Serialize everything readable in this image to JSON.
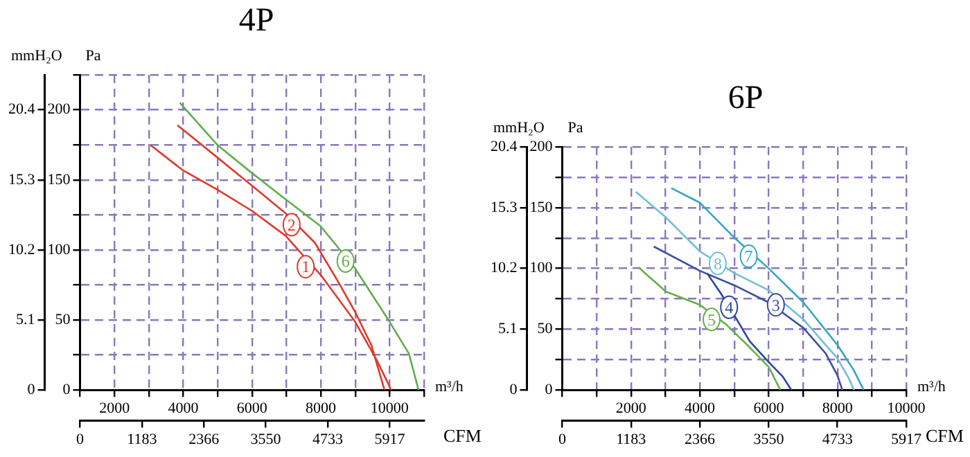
{
  "chart_data": [
    {
      "type": "line",
      "title": "4P",
      "xlabel": "m³/h",
      "x2label": "CFM",
      "ylabel": "Pa",
      "y2label": "mmH₂O",
      "grid": true,
      "xlim": [
        1000,
        11000
      ],
      "xticks": [
        {
          "value": 1000,
          "label": null
        },
        2000,
        {
          "value": 3000,
          "label": null
        },
        4000,
        {
          "value": 5000,
          "label": null
        },
        6000,
        {
          "value": 7000,
          "label": null
        },
        8000,
        {
          "value": 9000,
          "label": null
        },
        10000,
        {
          "value": 11000,
          "label": null
        }
      ],
      "x2lim": [
        0,
        6574
      ],
      "x2ticks": [
        0,
        1183,
        2366,
        3550,
        4733,
        5917
      ],
      "ylim": [
        0,
        225
      ],
      "yticks": [
        0,
        {
          "value": 25,
          "label": null
        },
        50,
        {
          "value": 75,
          "label": null
        },
        100,
        {
          "value": 125,
          "label": null
        },
        150,
        {
          "value": 175,
          "label": null
        },
        200,
        {
          "value": 225,
          "label": null
        }
      ],
      "y2lim": [
        0,
        22.95
      ],
      "y2ticks": [
        0,
        5.1,
        10.2,
        15.3,
        20.4
      ],
      "series": [
        {
          "color": "#e0392b",
          "x": [
            3040,
            3980,
            4990,
            5990,
            6980,
            7560,
            8000,
            8990,
            9610,
            9950,
            10040
          ],
          "values": [
            175,
            157,
            143,
            128,
            110,
            94,
            82,
            49,
            22,
            5,
            0
          ]
        },
        {
          "color": "#e0392b",
          "x": [
            3830,
            4990,
            5990,
            6980,
            7830,
            8510,
            8990,
            9470,
            9850
          ],
          "values": [
            189,
            166,
            146,
            126,
            105,
            77,
            56,
            32,
            0
          ]
        },
        {
          "color": "#5fae4c",
          "x": [
            3900,
            4990,
            5990,
            6980,
            7990,
            8990,
            9990,
            10560,
            10840
          ],
          "values": [
            205,
            175,
            155,
            136,
            117,
            87,
            49,
            26,
            0
          ]
        }
      ],
      "annotations": [
        {
          "text": "1",
          "x": 7560,
          "y": 88
        },
        {
          "text": "2",
          "x": 7150,
          "y": 118
        },
        {
          "text": "6",
          "x": 8720,
          "y": 92
        }
      ]
    },
    {
      "type": "line",
      "title": "6P",
      "xlabel": "m³/h",
      "x2label": "CFM",
      "ylabel": "Pa",
      "y2label": "mmH₂O",
      "grid": true,
      "xlim": [
        0,
        10000
      ],
      "xticks": [
        {
          "value": 0,
          "label": null
        },
        {
          "value": 1000,
          "label": null
        },
        2000,
        {
          "value": 3000,
          "label": null
        },
        4000,
        {
          "value": 5000,
          "label": null
        },
        6000,
        {
          "value": 7000,
          "label": null
        },
        8000,
        {
          "value": 9000,
          "label": null
        },
        10000
      ],
      "x2lim": [
        0,
        5917
      ],
      "x2ticks": [
        0,
        1183,
        2366,
        3550,
        4733,
        5917
      ],
      "ylim": [
        0,
        200
      ],
      "yticks": [
        0,
        {
          "value": 25,
          "label": null
        },
        50,
        {
          "value": 75,
          "label": null
        },
        100,
        {
          "value": 125,
          "label": null
        },
        150,
        {
          "value": 175,
          "label": null
        },
        200
      ],
      "y2lim": [
        0,
        20.4
      ],
      "y2ticks": [
        0,
        5.1,
        10.2,
        15.3,
        20.4
      ],
      "series": [
        {
          "color": "#3b4fa3",
          "x": [
            2660,
            4000,
            5010,
            6000,
            7010,
            7660,
            8000,
            8140
          ],
          "values": [
            118,
            98,
            86,
            72,
            51,
            30,
            12,
            0
          ]
        },
        {
          "color": "#2a45a0",
          "x": [
            4210,
            4620,
            5010,
            5450,
            6000,
            6410,
            6660
          ],
          "values": [
            96,
            79,
            61,
            40,
            23,
            11,
            0
          ]
        },
        {
          "color": "#66b04a",
          "x": [
            2210,
            3010,
            4000,
            4760,
            5380,
            6000,
            6340
          ],
          "values": [
            101,
            81,
            70,
            54,
            37,
            19,
            0
          ]
        },
        {
          "color": "#35a4c6",
          "x": [
            3170,
            4000,
            5010,
            6000,
            7010,
            8000,
            8480,
            8760
          ],
          "values": [
            166,
            154,
            125,
            100,
            72,
            37,
            16,
            0
          ]
        },
        {
          "color": "#6fbfd8",
          "x": [
            2140,
            3010,
            4000,
            5010,
            6000,
            7010,
            8000,
            8340,
            8480
          ],
          "values": [
            163,
            142,
            114,
            96,
            82,
            58,
            26,
            9,
            0
          ]
        }
      ],
      "annotations": [
        {
          "text": "3",
          "x": 6210,
          "y": 70
        },
        {
          "text": "4",
          "x": 4850,
          "y": 68
        },
        {
          "text": "5",
          "x": 4340,
          "y": 58
        },
        {
          "text": "7",
          "x": 5420,
          "y": 110
        },
        {
          "text": "8",
          "x": 4520,
          "y": 104
        }
      ]
    }
  ]
}
